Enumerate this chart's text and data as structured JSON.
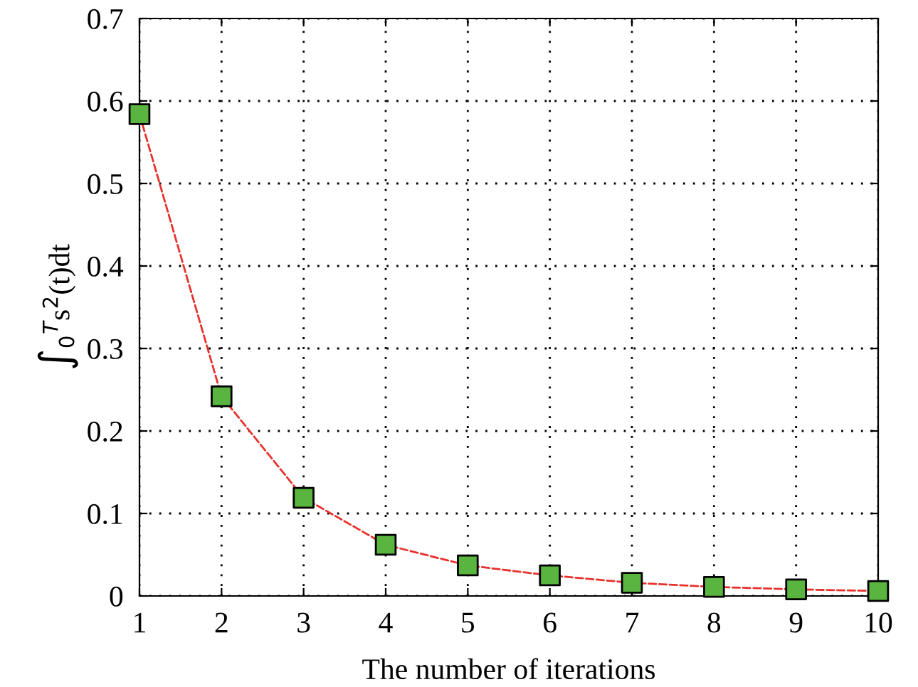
{
  "chart_data": {
    "type": "line",
    "xlabel": "The number of iterations",
    "ylabel": "∫$_{0}$$^{T}$s$^{2}$(t)dt",
    "x": [
      1,
      2,
      3,
      4,
      5,
      6,
      7,
      8,
      9,
      10
    ],
    "series": [
      {
        "color": "#e8312c",
        "colors": [
          "#5ab540",
          "#5ab540",
          "#5ab540",
          "#5ab540",
          "#5ab540",
          "#5ab540",
          "#5ab540",
          "#5ab540",
          "#5ab540",
          "#5ab540"
        ],
        "values": [
          0.584,
          0.242,
          0.119,
          0.062,
          0.037,
          0.025,
          0.016,
          0.011,
          0.008,
          0.006
        ]
      }
    ],
    "xlim": [
      1,
      10
    ],
    "xticks": [
      1,
      2,
      3,
      4,
      5,
      6,
      7,
      8,
      9,
      10
    ],
    "ylim": [
      0,
      0.7
    ],
    "yticks": [
      0,
      0.1,
      0.2,
      0.3,
      0.4,
      0.5,
      0.6,
      0.7
    ],
    "grid": true,
    "marker": "square",
    "line_style": "dashed"
  }
}
